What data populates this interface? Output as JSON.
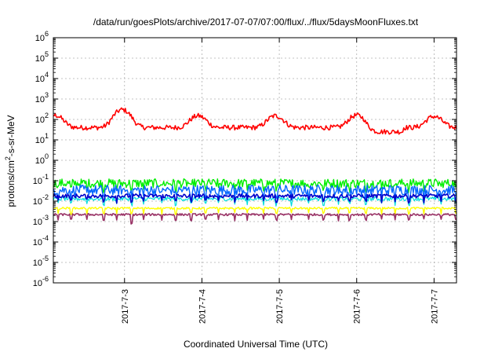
{
  "chart_data": {
    "type": "line",
    "title": "/data/run/goesPlots/archive/2017-07-07/07:00/flux/../flux/5daysMoonFluxes.txt",
    "xlabel": "Coordinated Universal Time (UTC)",
    "ylabel_parts": [
      "protons/cm",
      "2",
      "-s-sr-MeV"
    ],
    "yscale": "log",
    "ylim_exponents": [
      -6,
      6
    ],
    "y_tick_exponents": [
      -6,
      -5,
      -4,
      -3,
      -2,
      -1,
      0,
      1,
      2,
      3,
      4,
      5,
      6
    ],
    "xlim_days": [
      2.08,
      7.29
    ],
    "x_ticks": [
      {
        "label": "2017-7-3",
        "day": 3.0
      },
      {
        "label": "2017-7-4",
        "day": 4.0
      },
      {
        "label": "2017-7-5",
        "day": 5.0
      },
      {
        "label": "2017-7-6",
        "day": 6.0
      },
      {
        "label": "2017-7-7",
        "day": 7.0
      }
    ],
    "grid": true,
    "series": [
      {
        "color": "#ff0000",
        "width": 1.6,
        "base": 40,
        "noise": 0.12,
        "bumps": [
          [
            2.1,
            160
          ],
          [
            2.97,
            300
          ],
          [
            3.95,
            150
          ],
          [
            4.95,
            150
          ],
          [
            6.0,
            160
          ],
          [
            7.0,
            140
          ]
        ],
        "bump_width": 0.12
      },
      {
        "color": "#00ee00",
        "width": 1.4,
        "base": 0.075,
        "noise": 0.22,
        "dips": true
      },
      {
        "color": "#0066ff",
        "width": 1.4,
        "base": 0.035,
        "noise": 0.25,
        "dips": true
      },
      {
        "color": "#00dddd",
        "width": 1.2,
        "base": 0.013,
        "noise": 0.1,
        "dips": true
      },
      {
        "color": "#0000cc",
        "width": 1.6,
        "base": 0.018,
        "noise": 0.1,
        "dips": true
      },
      {
        "color": "#ffff00",
        "width": 1.4,
        "base": 0.0045,
        "noise": 0.05,
        "dips": true
      },
      {
        "color": "#993366",
        "width": 1.6,
        "base": 0.0022,
        "noise": 0.05,
        "dips": true
      }
    ]
  }
}
